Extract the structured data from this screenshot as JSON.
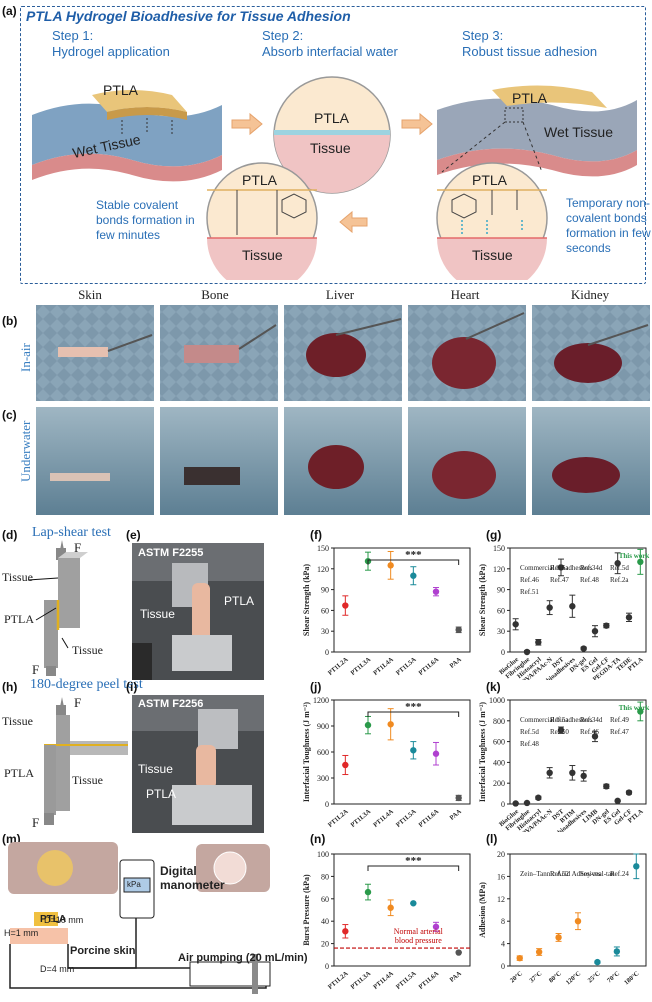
{
  "panel_a": {
    "label": "(a)",
    "title": "PTLA Hydrogel Bioadhesive for Tissue Adhesion",
    "step1": "Step 1:",
    "step1_desc": "Hydrogel application",
    "step2": "Step 2:",
    "step2_desc": "Absorb interfacial water",
    "step3": "Step 3:",
    "step3_desc": "Robust tissue adhesion",
    "ptla": "PTLA",
    "wet_tissue": "Wet Tissue",
    "tissue": "Tissue",
    "stable_text": [
      "Stable covalent",
      "bonds formation in",
      "few minutes"
    ],
    "temp_text": [
      "Temporary non-",
      "covalent bonds",
      "formation in few",
      "seconds"
    ]
  },
  "panel_bc": {
    "label_b": "(b)",
    "label_c": "(c)",
    "columns": [
      "Skin",
      "Bone",
      "Liver",
      "Heart",
      "Kidney"
    ],
    "row_inair": "In-air",
    "row_underwater": "Underwater"
  },
  "panel_d": {
    "label": "(d)",
    "title": "Lap-shear test",
    "tissue_top": "Tissue",
    "ptla": "PTLA",
    "tissue_bot": "Tissue",
    "f": "F"
  },
  "panel_e": {
    "label": "(e)",
    "standard": "ASTM F2255",
    "tissue": "Tissue",
    "ptla": "PTLA"
  },
  "panel_h": {
    "label": "(h)",
    "title": "180-degree peel test",
    "tissue_top": "Tissue",
    "ptla": "PTLA",
    "tissue_bot": "Tissue",
    "f": "F"
  },
  "panel_i": {
    "label": "(i)",
    "standard": "ASTM F2256",
    "tissue": "Tissue",
    "ptla": "PTLA"
  },
  "panel_m": {
    "label": "(m)",
    "d10": "D=10 mm",
    "h1": "H=1 mm",
    "d4": "D=4 mm",
    "ptla": "PTLA",
    "porcine": "Porcine skin",
    "manometer": [
      "Digital",
      "manometer"
    ],
    "kpa": "kPa",
    "air": "Air pumping (20 mL/min)"
  },
  "chart_data": [
    {
      "id": "f",
      "label": "(f)",
      "type": "scatter",
      "categories": [
        "PT1L2A",
        "PT1L3A",
        "PT1L4A",
        "PT1L5A",
        "PT1L6A",
        "PAA"
      ],
      "values": [
        67,
        131,
        125,
        110,
        87,
        32
      ],
      "errors": [
        14,
        13,
        20,
        13,
        6,
        4
      ],
      "colors": [
        "#e02828",
        "#2a9a4a",
        "#f08a20",
        "#1a8a9a",
        "#b040d0",
        "#555555"
      ],
      "ylabel": "Shear Strength (kPa)",
      "ylim": [
        0,
        150
      ],
      "yticks": [
        0,
        30,
        60,
        90,
        120,
        150
      ],
      "significance": "***"
    },
    {
      "id": "g",
      "label": "(g)",
      "type": "scatter",
      "categories": [
        "BioGlue",
        "Fibringlue",
        "Histoacryl",
        "PVA/PAAc-N",
        "DST",
        "E-bioadhesives",
        "DN-gel",
        "ES Gel",
        "Gel-CF",
        "PEGDA-TA",
        "TEDE",
        "PTLA"
      ],
      "values": [
        40,
        0,
        14,
        64,
        122,
        66,
        5,
        30,
        38,
        128,
        50,
        130
      ],
      "errors": [
        8,
        2,
        4,
        10,
        12,
        16,
        2,
        8,
        3,
        15,
        6,
        18
      ],
      "colors": [
        "#333333",
        "#333333",
        "#333333",
        "#333333",
        "#333333",
        "#333333",
        "#333333",
        "#333333",
        "#333333",
        "#333333",
        "#333333",
        "#2a9a4a"
      ],
      "annotations": [
        "Commercial bioadhesives",
        "Ref.5a",
        "Ref.34d",
        "Ref.5d",
        "Ref.46",
        "Ref.47",
        "Ref.48",
        "Ref.2a",
        "Ref.51",
        "This work"
      ],
      "ylabel": "Shear Strength (kPa)",
      "ylim": [
        0,
        150
      ],
      "yticks": [
        0,
        30,
        60,
        90,
        120,
        150
      ]
    },
    {
      "id": "j",
      "label": "(j)",
      "type": "scatter",
      "categories": [
        "PT1L2A",
        "PT1L3A",
        "PT1L4A",
        "PT1L5A",
        "PT1L6A",
        "PAA"
      ],
      "values": [
        450,
        910,
        920,
        620,
        580,
        70
      ],
      "errors": [
        110,
        100,
        180,
        100,
        130,
        30
      ],
      "colors": [
        "#e02828",
        "#2a9a4a",
        "#f08a20",
        "#1a8a9a",
        "#b040d0",
        "#555555"
      ],
      "ylabel": "Interfacial Toughness (J m⁻²)",
      "ylim": [
        0,
        1200
      ],
      "yticks": [
        0,
        300,
        600,
        900,
        1200
      ],
      "significance": "***"
    },
    {
      "id": "k",
      "label": "(k)",
      "type": "scatter",
      "categories": [
        "BioGlue",
        "Fibringlue",
        "Histoacryl",
        "PVA/PAAc-N",
        "DST",
        "BTIM",
        "E-bioadhesives",
        "LIMB",
        "DN-gel",
        "ES Gel",
        "Gel-CF",
        "PTLA"
      ],
      "values": [
        5,
        10,
        60,
        300,
        710,
        300,
        270,
        650,
        170,
        30,
        110,
        890
      ],
      "errors": [
        3,
        4,
        15,
        50,
        30,
        70,
        50,
        50,
        20,
        8,
        15,
        90
      ],
      "colors": [
        "#333333",
        "#333333",
        "#333333",
        "#333333",
        "#333333",
        "#333333",
        "#333333",
        "#333333",
        "#333333",
        "#333333",
        "#333333",
        "#2a9a4a"
      ],
      "annotations": [
        "Commercial bioadhesives",
        "Ref.5a",
        "Ref.34d",
        "Ref.49",
        "Ref.5d",
        "Ref.50",
        "Ref.46",
        "Ref.47",
        "Ref.48",
        "This work"
      ],
      "ylabel": "Interfacial Toughness (J m⁻²)",
      "ylim": [
        0,
        1000
      ],
      "yticks": [
        0,
        200,
        400,
        600,
        800,
        1000
      ]
    },
    {
      "id": "n",
      "label": "(n)",
      "type": "scatter",
      "categories": [
        "PT1L2A",
        "PT1L3A",
        "PT1L4A",
        "PT1L5A",
        "PT1L6A",
        "PAA"
      ],
      "values": [
        31,
        66,
        52,
        56,
        35,
        12
      ],
      "errors": [
        6,
        7,
        7,
        0,
        4,
        0
      ],
      "colors": [
        "#e02828",
        "#2a9a4a",
        "#f08a20",
        "#1a8a9a",
        "#b040d0",
        "#555555"
      ],
      "ylabel": "Burst Pressure (kPa)",
      "ylim": [
        0,
        100
      ],
      "yticks": [
        0,
        20,
        40,
        60,
        80,
        100
      ],
      "reference_line": 16,
      "reference_label": [
        "Normal arterial",
        "blood pressure"
      ],
      "significance": "***"
    },
    {
      "id": "l",
      "label": "(l)",
      "type": "scatter",
      "categories": [
        "20°C",
        "37°C",
        "80°C",
        "120°C",
        "25°C",
        "70°C",
        "180°C"
      ],
      "values": [
        1.4,
        2.5,
        5.1,
        8.0,
        0.7,
        2.6,
        17.8
      ],
      "errors": [
        0.4,
        0.6,
        0.7,
        1.5,
        0.2,
        0.8,
        2.2
      ],
      "colors": [
        "#f08a20",
        "#f08a20",
        "#f08a20",
        "#f08a20",
        "#1a8a9a",
        "#1a8a9a",
        "#1a8a9a"
      ],
      "annotations": [
        "Zein–Tannic Acid Adhesives",
        "Ref.52",
        "Soy-mal-tan",
        "Ref.24"
      ],
      "ylabel": "Adhesion (MPa)",
      "ylim": [
        0,
        20
      ],
      "yticks": [
        0,
        4,
        8,
        12,
        16,
        20
      ]
    }
  ]
}
